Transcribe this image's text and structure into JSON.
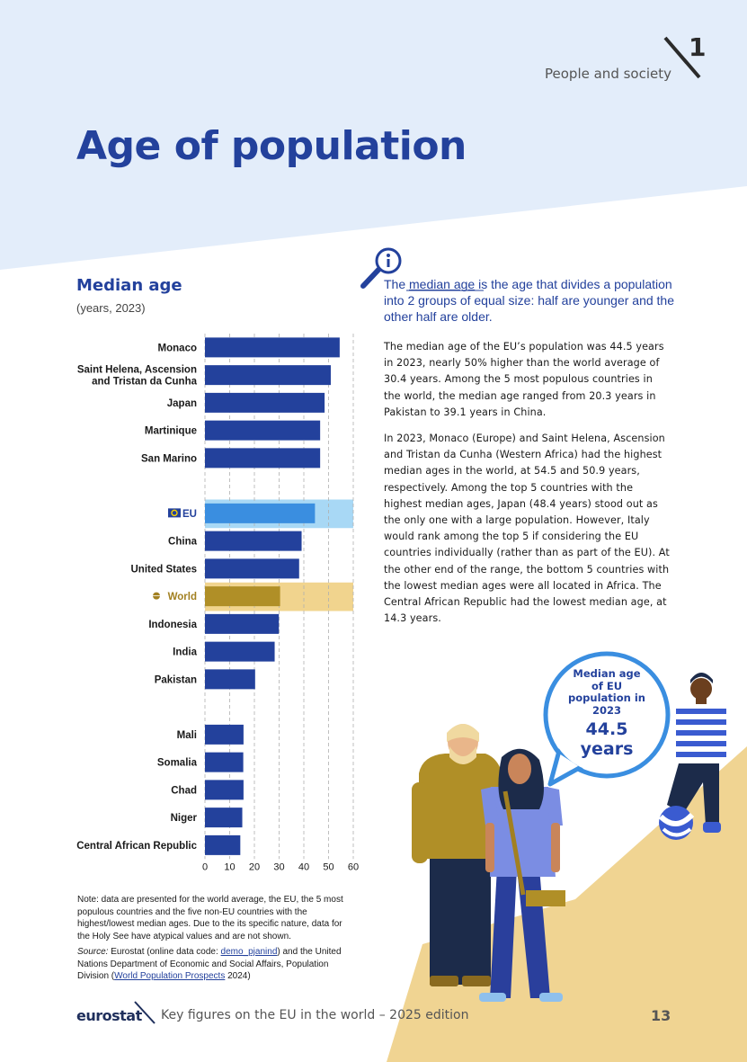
{
  "header": {
    "section_number": "1",
    "section_name": "People and society"
  },
  "page_title": "Age of population",
  "chart_title": "Median age",
  "chart_subtitle": "(years, 2023)",
  "chart_data": {
    "type": "bar",
    "orientation": "horizontal",
    "categories": [
      "Monaco",
      "Saint Helena, Ascension\nand Tristan da Cunha",
      "Japan",
      "Martinique",
      "San Marino",
      "",
      "EU",
      "China",
      "United States",
      "World",
      "Indonesia",
      "India",
      "Pakistan",
      "",
      "Mali",
      "Somalia",
      "Chad",
      "Niger",
      "Central African Republic"
    ],
    "values": [
      54.5,
      50.9,
      48.4,
      46.6,
      46.6,
      null,
      44.5,
      39.1,
      38.1,
      30.4,
      29.9,
      28.2,
      20.3,
      null,
      15.6,
      15.5,
      15.6,
      15.1,
      14.3
    ],
    "highlight": {
      "EU": "#3a8ee0",
      "World": "#b08f27"
    },
    "highlight_band": {
      "EU": "#a8d8f5",
      "World": "#f1d48e"
    },
    "bar_color": "#23419c",
    "xlim": [
      0,
      60
    ],
    "xticks": [
      0,
      10,
      20,
      30,
      40,
      50,
      60
    ],
    "grid": "vertical dashed"
  },
  "note": "Note: data are presented for the world average, the EU, the 5 most populous countries and the five non-EU countries with the highest/lowest median ages. Due to the its specific nature, data for the Holy See have atypical values and are not shown.",
  "source": {
    "label": "Source:",
    "text1": " Eurostat (online data code: ",
    "code": "demo_pjanind",
    "text2": ") and the United Nations Department of Economic and Social Affairs, Population Division (",
    "link": "World Population Prospects",
    "text3": " 2024)"
  },
  "info": {
    "pre": "The ",
    "term": "median age",
    "post": " is the age that divides a population into 2 groups of equal size: half are younger and the other half are older."
  },
  "paragraphs": [
    "The median age of the EU’s population was 44.5 years in 2023, nearly 50% higher than the world average of 30.4 years. Among the 5 most populous countries in the world, the median age ranged from 20.3 years in Pakistan to 39.1 years in China.",
    "In 2023, Monaco (Europe) and Saint Helena, Ascension and Tristan da Cunha (Western Africa) had the highest median ages in the world, at 54.5 and 50.9 years, respectively. Among the top 5 countries with the highest median ages, Japan (48.4 years) stood out as the only one with a large population. However, Italy would rank among the top 5 if considering the EU countries individually (rather than as part of the EU). At the other end of the range, the bottom 5 countries with the lowest median ages were all located in Africa. The Central African Republic had the lowest median age, at 14.3 years."
  ],
  "bubble": {
    "label": "Median age of EU population in 2023",
    "value": "44.5 years"
  },
  "footer": {
    "logo": "eurostat",
    "text": "Key figures on the EU in the world – 2025 edition",
    "page_number": "13"
  },
  "colors": {
    "title_blue": "#23419c",
    "header_band": "#e3edfa",
    "sand": "#f0d492"
  }
}
